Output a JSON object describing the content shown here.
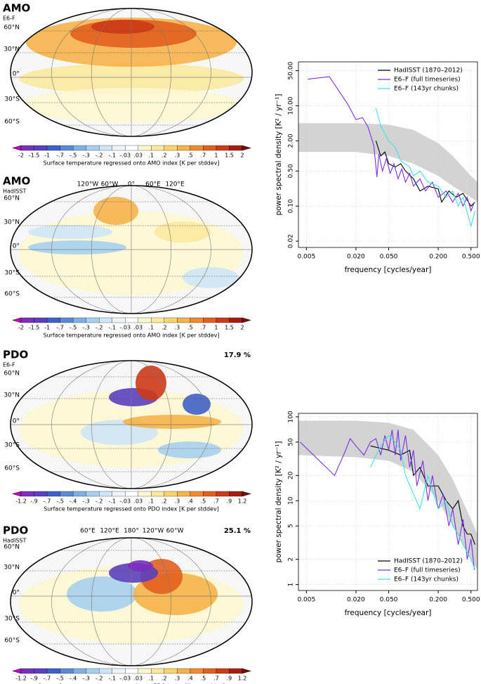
{
  "maps": [
    {
      "title": "AMO",
      "subtitle": "E6-F",
      "lat_labels": [
        "60°N",
        "30°N",
        "0°",
        "30°S",
        "60°S"
      ],
      "colorbar_ticks": [
        "-2",
        "-1.5",
        "-1",
        "-.7",
        "-.5",
        "-.3",
        "-.2",
        "-.1",
        "-.03",
        ".03",
        ".1",
        ".2",
        ".3",
        ".5",
        ".7",
        "1",
        "1.5",
        "2"
      ],
      "colorbar_label": "Surface temperature regressed onto AMO index [K per stddev]",
      "colorbar_colors": [
        "#c400c4",
        "#7b2fbf",
        "#5a3fc0",
        "#4060c8",
        "#5a8ad6",
        "#7fb0e6",
        "#a8cff0",
        "#cfe6f7",
        "#eef6fb",
        "#ffffff",
        "#fdf7d0",
        "#fbe9a0",
        "#f9d36e",
        "#f6b34a",
        "#f08a32",
        "#e2601f",
        "#cc3a16",
        "#a51d10",
        "#7a0c0c"
      ]
    },
    {
      "title": "AMO",
      "subtitle": "HadISST",
      "lat_labels": [
        "60°N",
        "30°N",
        "0°",
        "30°S",
        "60°S"
      ],
      "lon_labels": [
        "120°W",
        "60°W",
        "0°",
        "60°E",
        "120°E"
      ],
      "colorbar_ticks": [
        "-2",
        "-1.5",
        "-1",
        "-.7",
        "-.5",
        "-.3",
        "-.2",
        "-.1",
        "-.03",
        ".03",
        ".1",
        ".2",
        ".3",
        ".5",
        ".7",
        "1",
        "1.5",
        "2"
      ],
      "colorbar_label": "Surface temperature regressed onto AMO index [K per stddev]",
      "colorbar_colors": [
        "#c400c4",
        "#7b2fbf",
        "#5a3fc0",
        "#4060c8",
        "#5a8ad6",
        "#7fb0e6",
        "#a8cff0",
        "#cfe6f7",
        "#eef6fb",
        "#ffffff",
        "#fdf7d0",
        "#fbe9a0",
        "#f9d36e",
        "#f6b34a",
        "#f08a32",
        "#e2601f",
        "#cc3a16",
        "#a51d10",
        "#7a0c0c"
      ]
    },
    {
      "title": "PDO",
      "subtitle": "E6-F",
      "percent": "17.9 %",
      "lat_labels": [
        "60°N",
        "30°N",
        "0°",
        "30°S",
        "60°S"
      ],
      "colorbar_ticks": [
        "-1.2",
        "-.9",
        "-.7",
        "-.5",
        "-.4",
        "-.3",
        "-.2",
        "-.1",
        "-.03",
        ".03",
        ".1",
        ".2",
        ".3",
        ".4",
        ".5",
        ".7",
        ".9",
        "1.2"
      ],
      "colorbar_label": "Surface temperature regressed onto PDO index [K per stddev]",
      "colorbar_colors": [
        "#c400c4",
        "#7b2fbf",
        "#5a3fc0",
        "#4060c8",
        "#5a8ad6",
        "#7fb0e6",
        "#a8cff0",
        "#cfe6f7",
        "#eef6fb",
        "#ffffff",
        "#fdf7d0",
        "#fbe9a0",
        "#f9d36e",
        "#f6b34a",
        "#f08a32",
        "#e2601f",
        "#cc3a16",
        "#a51d10",
        "#7a0c0c"
      ]
    },
    {
      "title": "PDO",
      "subtitle": "HadISST",
      "percent": "25.1 %",
      "lat_labels": [
        "60°N",
        "30°N",
        "0°",
        "30°S",
        "60°S"
      ],
      "lon_labels": [
        "60°E",
        "120°E",
        "180°",
        "120°W",
        "60°W"
      ],
      "colorbar_ticks": [
        "-1.2",
        "-.9",
        "-.7",
        "-.5",
        "-.4",
        "-.3",
        "-.2",
        "-.1",
        "-.03",
        ".03",
        ".1",
        ".2",
        ".3",
        ".4",
        ".5",
        ".7",
        ".9",
        "1.2"
      ],
      "colorbar_label": "Sea surface temperature regressed onto PDO index [K per stddev]",
      "colorbar_colors": [
        "#c400c4",
        "#7b2fbf",
        "#5a3fc0",
        "#4060c8",
        "#5a8ad6",
        "#7fb0e6",
        "#a8cff0",
        "#cfe6f7",
        "#eef6fb",
        "#ffffff",
        "#fdf7d0",
        "#fbe9a0",
        "#f9d36e",
        "#f6b34a",
        "#f08a32",
        "#e2601f",
        "#cc3a16",
        "#a51d10",
        "#7a0c0c"
      ]
    }
  ],
  "chart_data": [
    {
      "type": "line",
      "xlabel": "frequency [cycles/year]",
      "ylabel": "power spectral density [K² / yr⁻¹]",
      "xlog": true,
      "ylog": true,
      "grid": true,
      "legend": "top-right",
      "xlim": [
        0.004,
        0.6
      ],
      "ylim": [
        0.015,
        75
      ],
      "xticks": [
        0.005,
        {
          "value": 0.02,
          "label": "0.020"
        },
        {
          "value": 0.05,
          "label": "0.050"
        },
        {
          "value": 0.2,
          "label": "0.200"
        },
        {
          "value": 0.5,
          "label": "0.500"
        }
      ],
      "yticks": [
        {
          "value": 50,
          "label": "50.00"
        },
        {
          "value": 10,
          "label": "10.00"
        },
        {
          "value": 2,
          "label": "2.00"
        },
        {
          "value": 0.5,
          "label": "0.50"
        },
        {
          "value": 0.1,
          "label": "0.10"
        },
        0.02
      ],
      "band": {
        "color": "#d3d3d3",
        "x": [
          0.004,
          0.01,
          0.02,
          0.05,
          0.1,
          0.2,
          0.3,
          0.5,
          0.6
        ],
        "lower": [
          1.2,
          1.2,
          1.2,
          1.0,
          0.7,
          0.4,
          0.25,
          0.15,
          0.12
        ],
        "upper": [
          4.5,
          4.5,
          4.5,
          4.2,
          3.3,
          1.8,
          1.0,
          0.4,
          0.3
        ]
      },
      "series": [
        {
          "name": "HadISST (1870–2012)",
          "color": "#000000",
          "x": [
            0.035,
            0.04,
            0.045,
            0.05,
            0.06,
            0.07,
            0.08,
            0.1,
            0.12,
            0.15,
            0.2,
            0.22,
            0.27,
            0.33,
            0.4,
            0.5,
            0.56
          ],
          "values": [
            2,
            1,
            1.2,
            0.7,
            0.6,
            0.7,
            0.5,
            0.35,
            0.2,
            0.25,
            0.22,
            0.12,
            0.2,
            0.15,
            0.18,
            0.1,
            0.12
          ]
        },
        {
          "name": "E6–F (full timeseries)",
          "color": "#7b2fe0",
          "x": [
            0.0052,
            0.0095,
            0.016,
            0.02,
            0.024,
            0.028,
            0.033,
            0.036,
            0.038,
            0.042,
            0.047,
            0.052,
            0.058,
            0.065,
            0.072,
            0.08,
            0.09,
            0.1,
            0.12,
            0.14,
            0.17,
            0.2,
            0.25,
            0.3,
            0.35,
            0.4,
            0.45,
            0.5,
            0.55
          ],
          "values": [
            34,
            38,
            10.6,
            5.3,
            5.8,
            3.8,
            1.6,
            0.38,
            1.1,
            0.5,
            0.9,
            0.45,
            0.7,
            0.35,
            0.55,
            0.3,
            0.45,
            0.25,
            0.35,
            0.2,
            0.3,
            0.15,
            0.2,
            0.12,
            0.18,
            0.1,
            0.15,
            0.08,
            0.12
          ]
        },
        {
          "name": "E6–F (143yr chunks)",
          "color": "#40e0e8",
          "x": [
            0.035,
            0.04,
            0.05,
            0.06,
            0.07,
            0.09,
            0.1,
            0.12,
            0.15,
            0.2,
            0.25,
            0.3,
            0.35,
            0.4,
            0.5,
            0.56
          ],
          "values": [
            9,
            4,
            2,
            1.5,
            0.8,
            0.6,
            0.4,
            0.5,
            0.3,
            0.25,
            0.15,
            0.2,
            0.1,
            0.15,
            0.04,
            0.08
          ]
        }
      ]
    },
    {
      "type": "line",
      "xlabel": "frequency [cycles/year]",
      "ylabel": "power spectral density [K² / yr⁻¹]",
      "xlog": true,
      "ylog": true,
      "grid": true,
      "legend": "bottom-right",
      "xlim": [
        0.004,
        0.6
      ],
      "ylim": [
        0.85,
        110
      ],
      "xticks": [
        0.005,
        {
          "value": 0.02,
          "label": "0.020"
        },
        {
          "value": 0.05,
          "label": "0.050"
        },
        {
          "value": 0.2,
          "label": "0.200"
        },
        {
          "value": 0.5,
          "label": "0.500"
        }
      ],
      "yticks": [
        100,
        50,
        20,
        10,
        5,
        2,
        1
      ],
      "band": {
        "color": "#d3d3d3",
        "x": [
          0.004,
          0.02,
          0.05,
          0.1,
          0.2,
          0.3,
          0.5,
          0.6
        ],
        "lower": [
          35,
          33,
          30,
          22,
          10,
          5,
          2,
          1.5
        ],
        "upper": [
          90,
          90,
          85,
          70,
          35,
          18,
          6,
          4
        ]
      },
      "series": [
        {
          "name": "HadISST (1870–2012)",
          "color": "#000000",
          "x": [
            0.03,
            0.05,
            0.07,
            0.09,
            0.1,
            0.12,
            0.15,
            0.2,
            0.25,
            0.3,
            0.35,
            0.4,
            0.45,
            0.5,
            0.56
          ],
          "values": [
            45,
            40,
            35,
            40,
            20,
            25,
            15,
            15,
            10,
            8,
            10,
            5,
            4,
            4,
            3
          ]
        },
        {
          "name": "E6–F (full timeseries)",
          "color": "#7b2fe0",
          "x": [
            0.0042,
            0.011,
            0.015,
            0.017,
            0.02,
            0.025,
            0.03,
            0.035,
            0.04,
            0.045,
            0.05,
            0.055,
            0.06,
            0.065,
            0.07,
            0.08,
            0.09,
            0.1,
            0.11,
            0.13,
            0.15,
            0.17,
            0.2,
            0.23,
            0.27,
            0.3,
            0.35,
            0.4,
            0.45,
            0.5,
            0.55
          ],
          "values": [
            50,
            20,
            40,
            55,
            45,
            35,
            50,
            55,
            35,
            60,
            40,
            70,
            35,
            70,
            30,
            60,
            25,
            40,
            15,
            30,
            10,
            20,
            8,
            12,
            5,
            8,
            3,
            6,
            2,
            3.5,
            1.5
          ]
        },
        {
          "name": "E6–F (143yr chunks)",
          "color": "#40e0e8",
          "x": [
            0.03,
            0.04,
            0.05,
            0.06,
            0.07,
            0.08,
            0.1,
            0.12,
            0.15,
            0.2,
            0.25,
            0.3,
            0.35,
            0.4,
            0.5,
            0.56
          ],
          "values": [
            25,
            45,
            60,
            50,
            40,
            20,
            12,
            8,
            20,
            8,
            10,
            5,
            4,
            3,
            2,
            1.5
          ]
        }
      ]
    }
  ]
}
